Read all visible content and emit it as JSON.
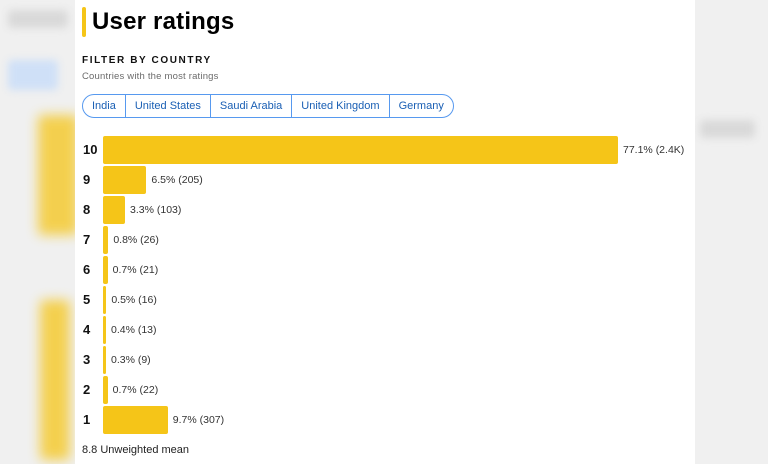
{
  "title": "User ratings",
  "filter": {
    "heading": "FILTER BY COUNTRY",
    "subtitle": "Countries with the most ratings",
    "countries": [
      "India",
      "United States",
      "Saudi Arabia",
      "United Kingdom",
      "Germany"
    ]
  },
  "chart_data": {
    "type": "bar",
    "orientation": "horizontal",
    "categories": [
      "10",
      "9",
      "8",
      "7",
      "6",
      "5",
      "4",
      "3",
      "2",
      "1"
    ],
    "values": [
      77.1,
      6.5,
      3.3,
      0.8,
      0.7,
      0.5,
      0.4,
      0.3,
      0.7,
      9.7
    ],
    "data_labels": [
      "77.1% (2.4K)",
      "6.5% (205)",
      "3.3% (103)",
      "0.8% (26)",
      "0.7% (21)",
      "0.5% (16)",
      "0.4% (13)",
      "0.3% (9)",
      "0.7% (22)",
      "9.7% (307)"
    ],
    "bar_color": "#f5c518"
  },
  "mean_text": "8.8 Unweighted mean",
  "colors": {
    "accent": "#f5c518",
    "chip_border": "#5799ef",
    "chip_text": "#1a5fb4"
  }
}
